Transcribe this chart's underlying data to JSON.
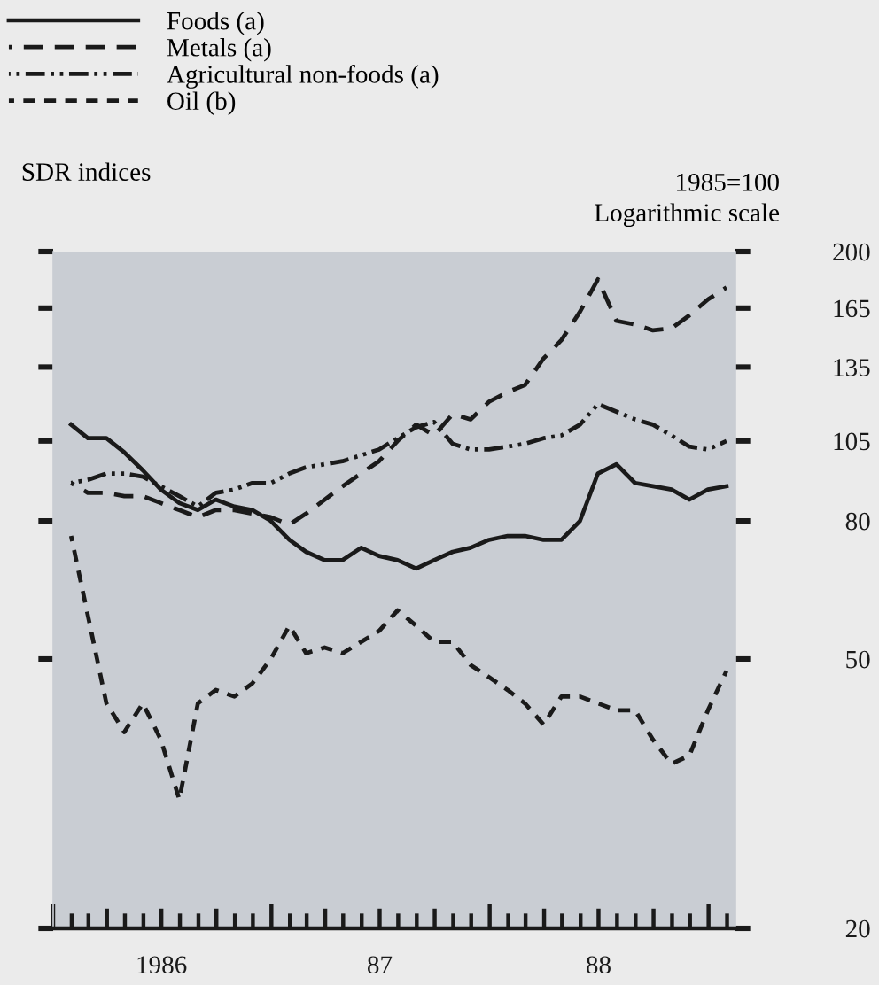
{
  "chart_data": {
    "type": "line",
    "ylabel": "SDR indices",
    "annotations": [
      "1985=100",
      "Logarithmic scale"
    ],
    "x": [
      "1986-01-31",
      "1986-02-28",
      "1986-03-31",
      "1986-04-30",
      "1986-05-31",
      "1986-06-30",
      "1986-07-31",
      "1986-08-31",
      "1986-09-30",
      "1986-10-31",
      "1986-11-30",
      "1986-12-31",
      "1987-01-31",
      "1987-02-28",
      "1987-03-31",
      "1987-04-30",
      "1987-05-31",
      "1987-06-30",
      "1987-07-31",
      "1987-08-31",
      "1987-09-30",
      "1987-10-31",
      "1987-11-30",
      "1987-12-31",
      "1988-01-31",
      "1988-02-29",
      "1988-03-31",
      "1988-04-30",
      "1988-05-31",
      "1988-06-30",
      "1988-07-31",
      "1988-08-31",
      "1988-09-30",
      "1988-10-31",
      "1988-11-30",
      "1988-12-31",
      "1989-01-31"
    ],
    "series": [
      {
        "name": "Foods (a)",
        "color": "#1a1a1a",
        "line_style": "solid",
        "values": [
          111,
          106,
          106,
          101,
          95,
          89,
          85,
          83,
          86,
          84,
          83,
          80,
          75,
          72,
          70,
          70,
          73,
          71,
          70,
          68,
          70,
          72,
          73,
          75,
          76,
          76,
          75,
          75,
          80,
          94,
          97,
          91,
          90,
          89,
          86,
          89,
          90
        ]
      },
      {
        "name": "Metals (a)",
        "color": "#1a1a1a",
        "line_style": "longdash",
        "values": [
          91,
          88,
          88,
          87,
          87,
          85,
          83,
          81,
          83,
          83,
          82,
          81,
          79,
          82,
          86,
          90,
          94,
          98,
          105,
          111,
          107,
          115,
          113,
          120,
          124,
          127,
          139,
          148,
          163,
          182,
          158,
          156,
          153,
          154,
          161,
          170,
          177
        ]
      },
      {
        "name": "Agricultural non-foods (a)",
        "color": "#1a1a1a",
        "line_style": "dashdotdot",
        "values": [
          91,
          92,
          94,
          94,
          93,
          90,
          87,
          84,
          88,
          89,
          91,
          91,
          94,
          96,
          97,
          98,
          100,
          102,
          106,
          110,
          112,
          104,
          102,
          102,
          103,
          104,
          106,
          107,
          111,
          119,
          116,
          113,
          111,
          107,
          103,
          102,
          105
        ]
      },
      {
        "name": "Oil (b)",
        "color": "#1a1a1a",
        "line_style": "dashed",
        "values": [
          76,
          58,
          43,
          39,
          43,
          38,
          31,
          43,
          45,
          44,
          46,
          50,
          56,
          51,
          52,
          51,
          53,
          55,
          59,
          56,
          53,
          53,
          49,
          47,
          45,
          43,
          40,
          44,
          44,
          43,
          42,
          42,
          38,
          35,
          36,
          42,
          48
        ]
      }
    ],
    "xlim": [
      "1986-01-01",
      "1989-02-15"
    ],
    "xticks": [
      {
        "value": "1986-01-01",
        "label": null
      },
      {
        "value": "1986-02-01",
        "label": null
      },
      {
        "value": "1986-03-01",
        "label": null
      },
      {
        "value": "1986-04-01",
        "label": null
      },
      {
        "value": "1986-05-01",
        "label": null
      },
      {
        "value": "1986-06-01",
        "label": null
      },
      {
        "value": "1986-07-01",
        "label": "1986"
      },
      {
        "value": "1986-08-01",
        "label": null
      },
      {
        "value": "1986-09-01",
        "label": null
      },
      {
        "value": "1986-10-01",
        "label": null
      },
      {
        "value": "1986-11-01",
        "label": null
      },
      {
        "value": "1986-12-01",
        "label": null
      },
      {
        "value": "1987-01-01",
        "label": null
      },
      {
        "value": "1987-02-01",
        "label": null
      },
      {
        "value": "1987-03-01",
        "label": null
      },
      {
        "value": "1987-04-01",
        "label": null
      },
      {
        "value": "1987-05-01",
        "label": null
      },
      {
        "value": "1987-06-01",
        "label": null
      },
      {
        "value": "1987-07-01",
        "label": "87"
      },
      {
        "value": "1987-08-01",
        "label": null
      },
      {
        "value": "1987-09-01",
        "label": null
      },
      {
        "value": "1987-10-01",
        "label": null
      },
      {
        "value": "1987-11-01",
        "label": null
      },
      {
        "value": "1987-12-01",
        "label": null
      },
      {
        "value": "1988-01-01",
        "label": null
      },
      {
        "value": "1988-02-01",
        "label": null
      },
      {
        "value": "1988-03-01",
        "label": null
      },
      {
        "value": "1988-04-01",
        "label": null
      },
      {
        "value": "1988-05-01",
        "label": null
      },
      {
        "value": "1988-06-01",
        "label": null
      },
      {
        "value": "1988-07-01",
        "label": "88"
      },
      {
        "value": "1988-08-01",
        "label": null
      },
      {
        "value": "1988-09-01",
        "label": null
      },
      {
        "value": "1988-10-01",
        "label": null
      },
      {
        "value": "1988-11-01",
        "label": null
      },
      {
        "value": "1988-12-01",
        "label": null
      },
      {
        "value": "1989-01-01",
        "label": null
      },
      {
        "value": "1989-02-01",
        "label": null
      }
    ],
    "ylim": [
      20,
      200
    ],
    "yticks": [
      20,
      50,
      80,
      105,
      135,
      165,
      200
    ],
    "log": true,
    "legend": "top left"
  }
}
